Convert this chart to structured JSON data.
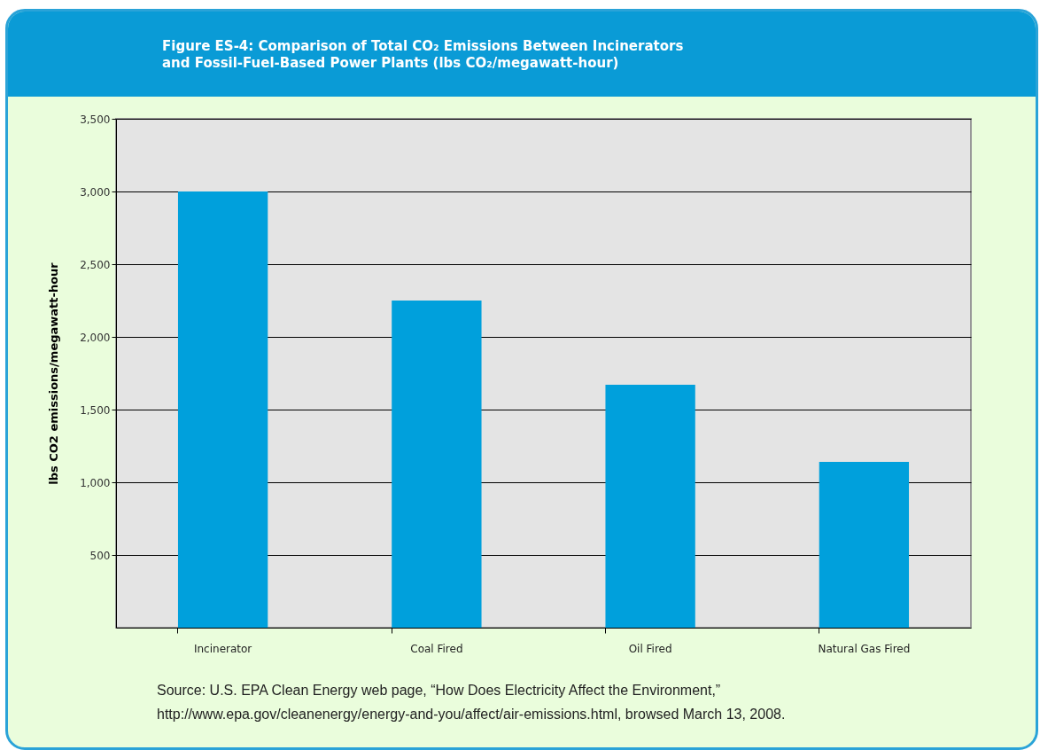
{
  "chart_data": {
    "type": "bar",
    "title": "Figure ES-4: Comparison of Total CO₂ Emissions Between Incinerators and Fossil-Fuel-Based Power Plants (lbs CO₂/megawatt-hour)",
    "ylabel": "lbs CO2 emissions/megawatt-hour",
    "categories": [
      "Incinerator",
      "Coal Fired",
      "Oil Fired",
      "Natural Gas Fired"
    ],
    "values": [
      3000,
      2250,
      1670,
      1140
    ],
    "color": "#00a0dc",
    "ylim": [
      0,
      3500
    ],
    "yticks": [
      {
        "value": 500,
        "label": "500"
      },
      {
        "value": 1000,
        "label": "1,000"
      },
      {
        "value": 1500,
        "label": "1,500"
      },
      {
        "value": 2000,
        "label": "2,000"
      },
      {
        "value": 2500,
        "label": "2,500"
      },
      {
        "value": 3000,
        "label": "3,000"
      },
      {
        "value": 3500,
        "label": "3,500"
      }
    ],
    "grid": "y",
    "annotations": [
      "Source: U.S. EPA Clean Energy web page, “How Does Electricity Affect the Environment,”",
      "http://www.epa.gov/cleanenergy/energy-and-you/affect/air-emissions.html, browsed March 13, 2008."
    ]
  }
}
